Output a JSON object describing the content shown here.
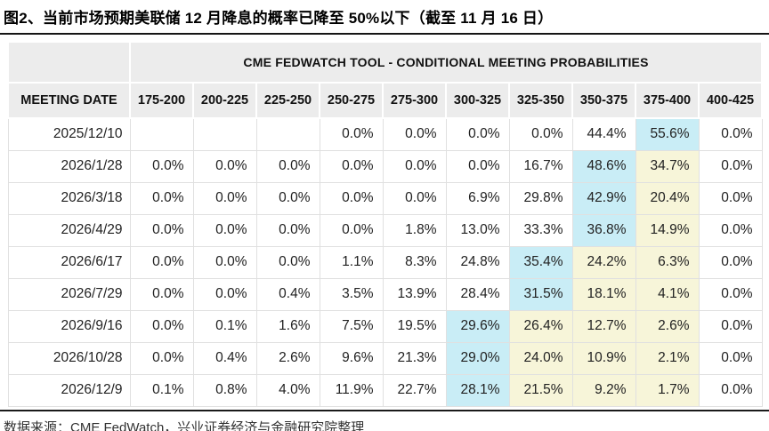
{
  "figure_title": "图2、当前市场预期美联储 12 月降息的概率已降至 50%以下（截至 11 月 16 日）",
  "source": "数据来源：CME FedWatch，兴业证券经济与金融研究院整理",
  "colors": {
    "highlight_blue": "#c9edf6",
    "highlight_yellow": "#f7f5d9",
    "header_bg": "#ececec"
  },
  "chart_data": {
    "type": "table",
    "title": "CME FEDWATCH TOOL - CONDITIONAL MEETING PROBABILITIES",
    "columns": [
      "MEETING DATE",
      "175-200",
      "200-225",
      "225-250",
      "250-275",
      "275-300",
      "300-325",
      "325-350",
      "350-375",
      "375-400",
      "400-425"
    ],
    "rows": [
      {
        "date": "2025/12/10",
        "values": [
          "",
          "",
          "",
          "0.0%",
          "0.0%",
          "0.0%",
          "0.0%",
          "44.4%",
          "55.6%",
          "0.0%"
        ],
        "highlights": {
          "8": "blue"
        }
      },
      {
        "date": "2026/1/28",
        "values": [
          "0.0%",
          "0.0%",
          "0.0%",
          "0.0%",
          "0.0%",
          "0.0%",
          "16.7%",
          "48.6%",
          "34.7%",
          "0.0%"
        ],
        "highlights": {
          "7": "blue",
          "8": "yellow"
        }
      },
      {
        "date": "2026/3/18",
        "values": [
          "0.0%",
          "0.0%",
          "0.0%",
          "0.0%",
          "0.0%",
          "6.9%",
          "29.8%",
          "42.9%",
          "20.4%",
          "0.0%"
        ],
        "highlights": {
          "7": "blue",
          "8": "yellow"
        }
      },
      {
        "date": "2026/4/29",
        "values": [
          "0.0%",
          "0.0%",
          "0.0%",
          "0.0%",
          "1.8%",
          "13.0%",
          "33.3%",
          "36.8%",
          "14.9%",
          "0.0%"
        ],
        "highlights": {
          "7": "blue",
          "8": "yellow"
        }
      },
      {
        "date": "2026/6/17",
        "values": [
          "0.0%",
          "0.0%",
          "0.0%",
          "1.1%",
          "8.3%",
          "24.8%",
          "35.4%",
          "24.2%",
          "6.3%",
          "0.0%"
        ],
        "highlights": {
          "6": "blue",
          "7": "yellow",
          "8": "yellow"
        }
      },
      {
        "date": "2026/7/29",
        "values": [
          "0.0%",
          "0.0%",
          "0.4%",
          "3.5%",
          "13.9%",
          "28.4%",
          "31.5%",
          "18.1%",
          "4.1%",
          "0.0%"
        ],
        "highlights": {
          "6": "blue",
          "7": "yellow",
          "8": "yellow"
        }
      },
      {
        "date": "2026/9/16",
        "values": [
          "0.0%",
          "0.1%",
          "1.6%",
          "7.5%",
          "19.5%",
          "29.6%",
          "26.4%",
          "12.7%",
          "2.6%",
          "0.0%"
        ],
        "highlights": {
          "5": "blue",
          "6": "yellow",
          "7": "yellow",
          "8": "yellow"
        }
      },
      {
        "date": "2026/10/28",
        "values": [
          "0.0%",
          "0.4%",
          "2.6%",
          "9.6%",
          "21.3%",
          "29.0%",
          "24.0%",
          "10.9%",
          "2.1%",
          "0.0%"
        ],
        "highlights": {
          "5": "blue",
          "6": "yellow",
          "7": "yellow",
          "8": "yellow"
        }
      },
      {
        "date": "2026/12/9",
        "values": [
          "0.1%",
          "0.8%",
          "4.0%",
          "11.9%",
          "22.7%",
          "28.1%",
          "21.5%",
          "9.2%",
          "1.7%",
          "0.0%"
        ],
        "highlights": {
          "5": "blue",
          "6": "yellow",
          "7": "yellow",
          "8": "yellow"
        }
      }
    ]
  }
}
